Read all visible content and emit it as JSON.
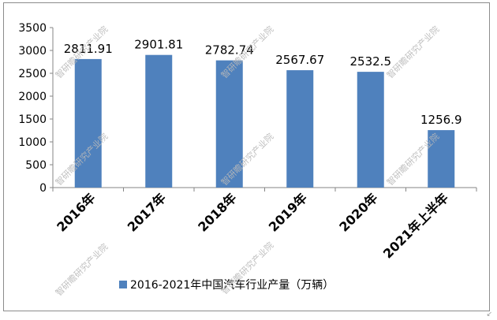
{
  "chart_data": {
    "type": "bar",
    "categories": [
      "2016年",
      "2017年",
      "2018年",
      "2019年",
      "2020年",
      "2021年上半年"
    ],
    "values": [
      2811.91,
      2901.81,
      2782.74,
      2567.67,
      2532.5,
      1256.9
    ],
    "value_labels": [
      "2811.91",
      "2901.81",
      "2782.74",
      "2567.67",
      "2532.5",
      "1256.9"
    ],
    "series": [
      {
        "name": "2016-2021年中国汽车行业产量（万辆）",
        "values": [
          2811.91,
          2901.81,
          2782.74,
          2567.67,
          2532.5,
          1256.9
        ]
      }
    ],
    "ylim": [
      0,
      3500
    ],
    "yticks": [
      0,
      500,
      1000,
      1500,
      2000,
      2500,
      3000,
      3500
    ],
    "grid": false,
    "legend_position": "bottom",
    "bar_color": "#4f81bd",
    "watermark_text": "智研瞻研究产业院"
  }
}
